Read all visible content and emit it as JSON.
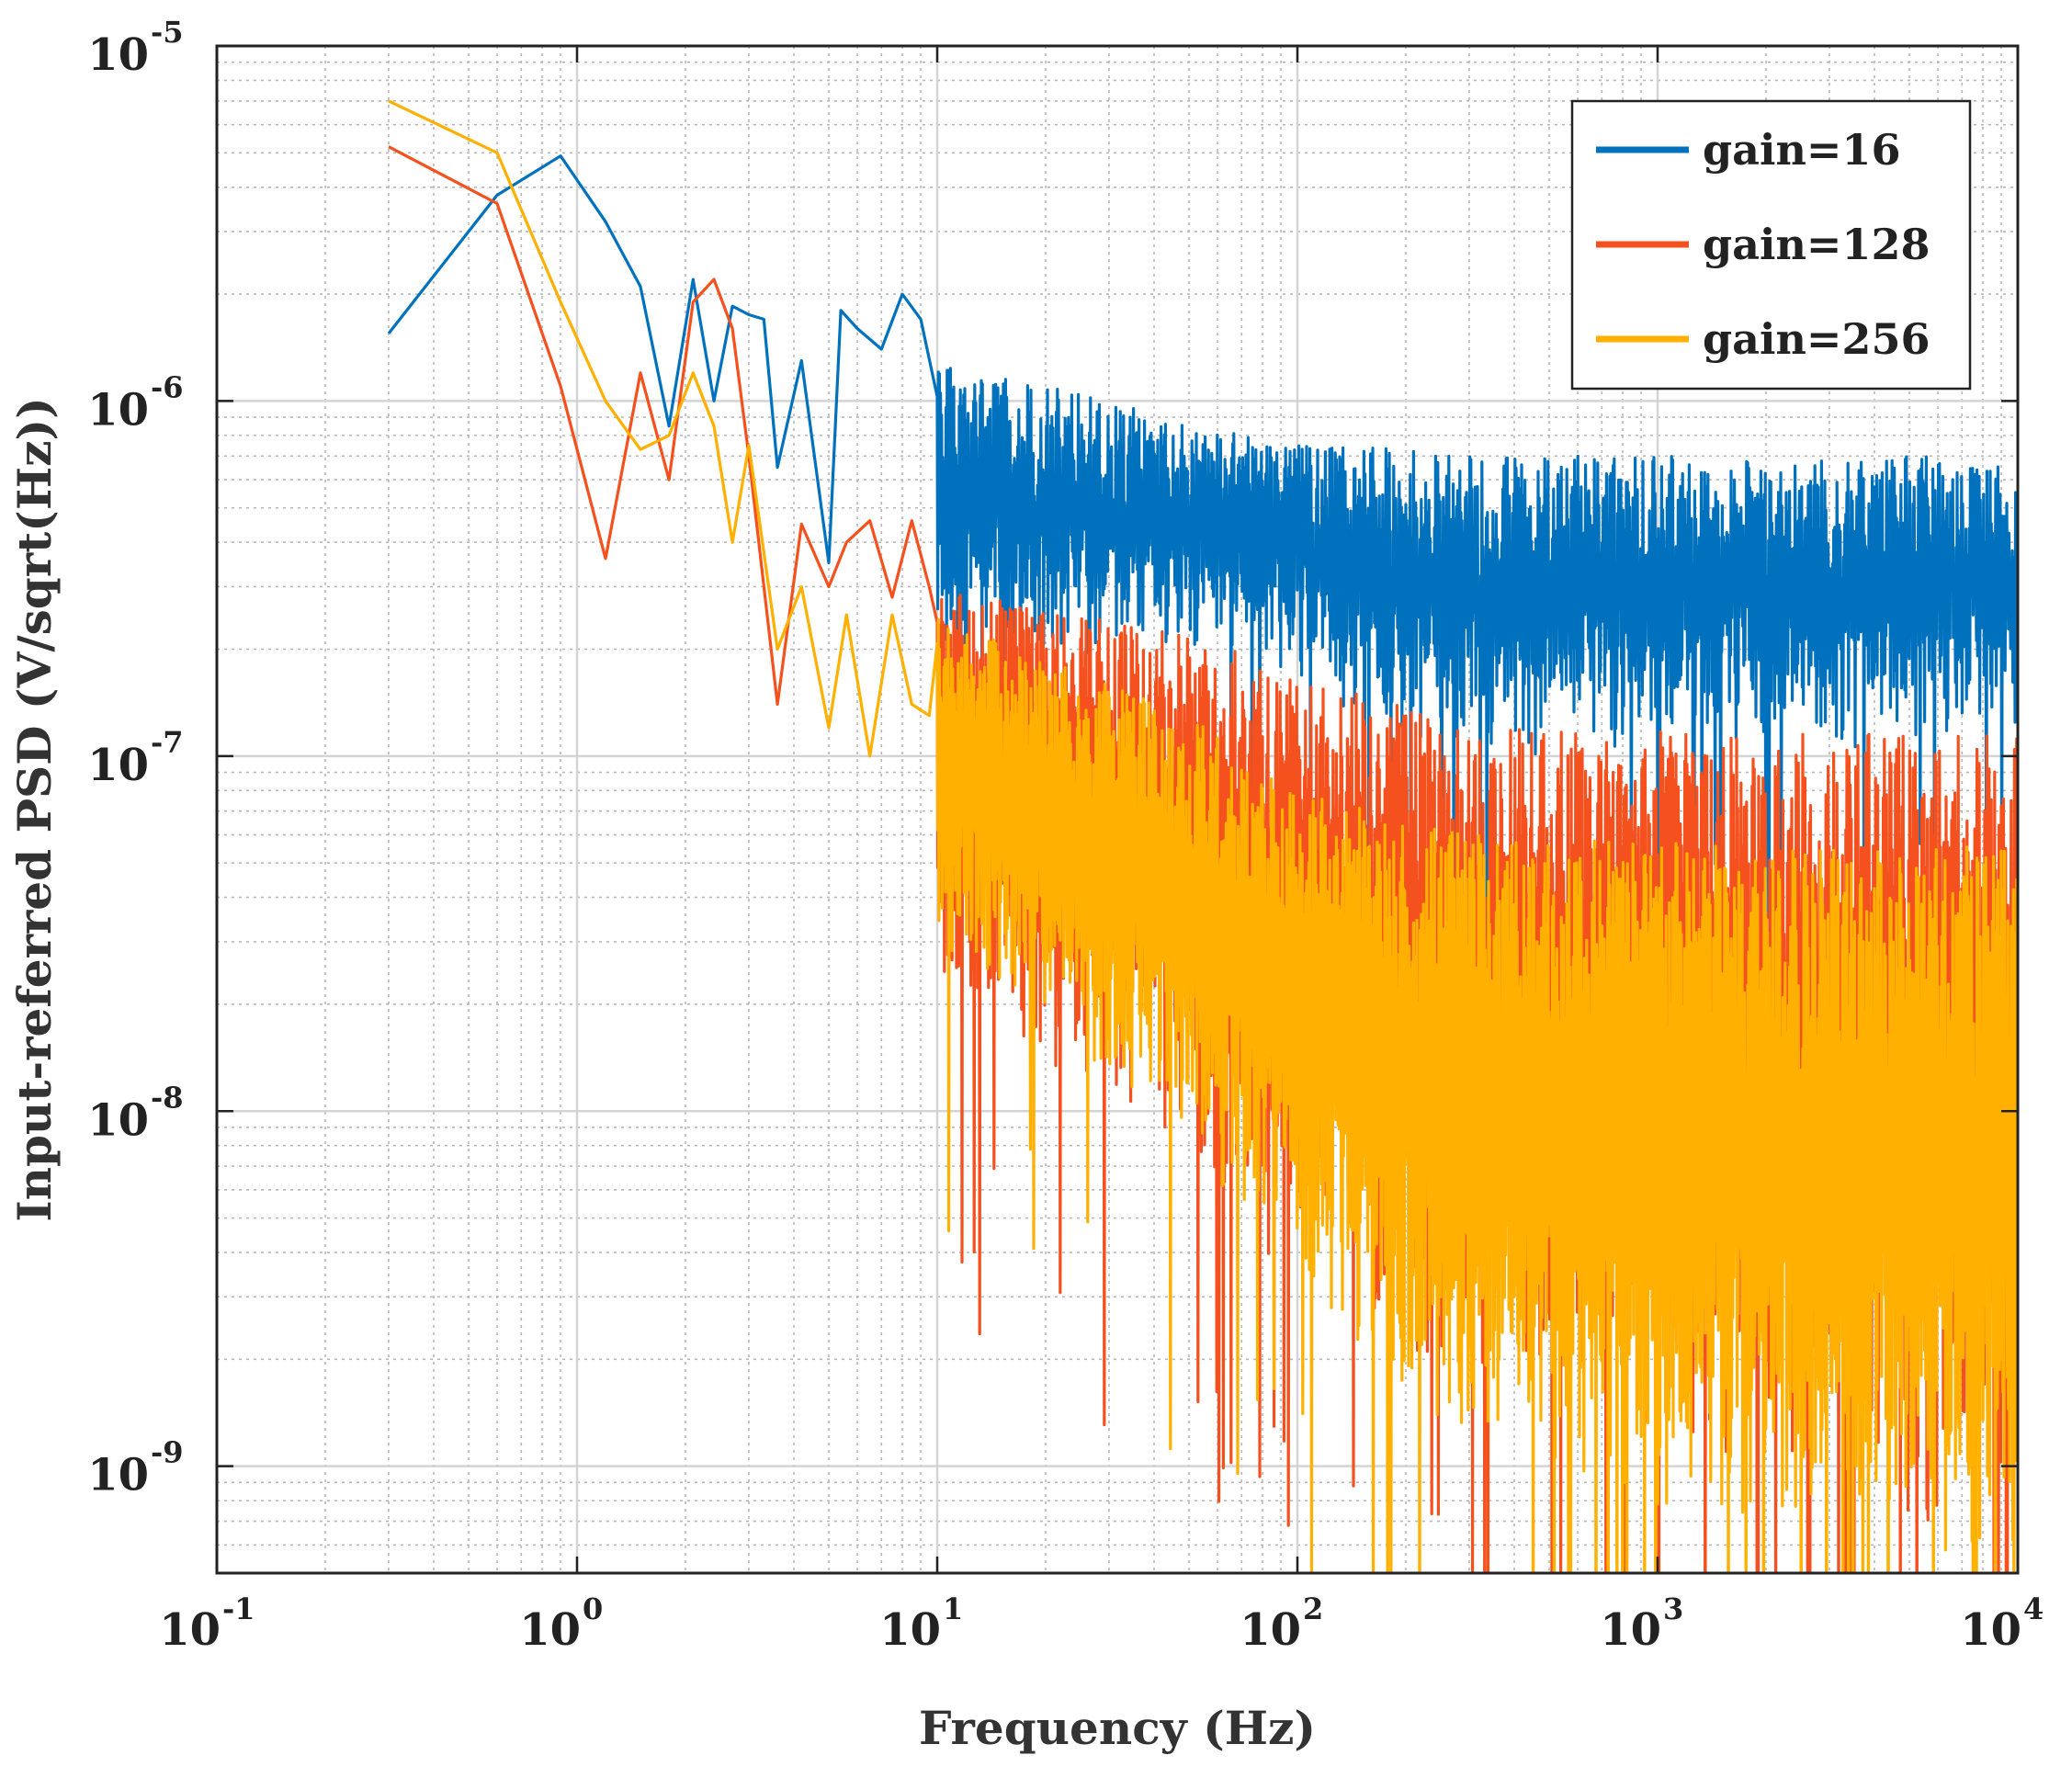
{
  "chart_data": {
    "type": "line",
    "xscale": "log",
    "yscale": "log",
    "xlabel": "Frequency (Hz)",
    "ylabel": "Input-referred PSD (V/sqrt(Hz))",
    "xlim": [
      0.1,
      10000
    ],
    "ylim": [
      5e-10,
      1e-05
    ],
    "grid": true,
    "legend_position": "top-right",
    "x_ticks": [
      {
        "value": 0.1,
        "base": "10",
        "exp": "-1"
      },
      {
        "value": 1,
        "base": "10",
        "exp": "0"
      },
      {
        "value": 10,
        "base": "10",
        "exp": "1"
      },
      {
        "value": 100,
        "base": "10",
        "exp": "2"
      },
      {
        "value": 1000,
        "base": "10",
        "exp": "3"
      },
      {
        "value": 10000,
        "base": "10",
        "exp": "4"
      }
    ],
    "y_ticks": [
      {
        "value": 1e-09,
        "base": "10",
        "exp": "-9"
      },
      {
        "value": 1e-08,
        "base": "10",
        "exp": "-8"
      },
      {
        "value": 1e-07,
        "base": "10",
        "exp": "-7"
      },
      {
        "value": 1e-06,
        "base": "10",
        "exp": "-6"
      },
      {
        "value": 1e-05,
        "base": "10",
        "exp": "-5"
      }
    ],
    "series": [
      {
        "name": "gain=16",
        "label": "gain=16",
        "color": "#0072BD",
        "low_freq_points": [
          [
            0.3,
            1.55e-06
          ],
          [
            0.6,
            3.8e-06
          ],
          [
            0.9,
            4.9e-06
          ],
          [
            1.2,
            3.2e-06
          ],
          [
            1.5,
            2.1e-06
          ],
          [
            1.8,
            8.5e-07
          ],
          [
            2.1,
            2.2e-06
          ],
          [
            2.4,
            1e-06
          ],
          [
            2.7,
            1.85e-06
          ],
          [
            3.0,
            1.75e-06
          ],
          [
            3.3,
            1.7e-06
          ],
          [
            3.6,
            6.5e-07
          ],
          [
            4.2,
            1.3e-06
          ],
          [
            5.0,
            3.5e-07
          ],
          [
            5.4,
            1.8e-06
          ],
          [
            6.0,
            1.6e-06
          ],
          [
            7.0,
            1.4e-06
          ],
          [
            8.0,
            2e-06
          ],
          [
            9.0,
            1.7e-06
          ]
        ],
        "band_upper": [
          [
            10,
            1.3e-06
          ],
          [
            30,
            1e-06
          ],
          [
            80,
            8e-07
          ],
          [
            300,
            7e-07
          ],
          [
            10000,
            7e-07
          ]
        ],
        "band_lower": [
          [
            10,
            1.5e-07
          ],
          [
            30,
            2e-07
          ],
          [
            80,
            1.8e-07
          ],
          [
            150,
            1.2e-07
          ],
          [
            300,
            1e-07
          ],
          [
            1000,
            1e-07
          ],
          [
            10000,
            1.1e-07
          ]
        ],
        "stats": {
          "seed": 11,
          "mean_log_offset": 0.55,
          "spread": 0.45,
          "deep_dip_prob": 0.03,
          "deep_dip_min": 0.25
        }
      },
      {
        "name": "gain=128",
        "label": "gain=128",
        "color": "#F4511E",
        "low_freq_points": [
          [
            0.3,
            5.2e-06
          ],
          [
            0.6,
            3.6e-06
          ],
          [
            0.9,
            1.1e-06
          ],
          [
            1.2,
            3.6e-07
          ],
          [
            1.5,
            1.2e-06
          ],
          [
            1.8,
            6e-07
          ],
          [
            2.1,
            1.9e-06
          ],
          [
            2.4,
            2.2e-06
          ],
          [
            2.7,
            1.6e-06
          ],
          [
            3.0,
            7e-07
          ],
          [
            3.6,
            1.4e-07
          ],
          [
            4.2,
            4.5e-07
          ],
          [
            5.0,
            3e-07
          ],
          [
            5.6,
            4e-07
          ],
          [
            6.5,
            4.6e-07
          ],
          [
            7.5,
            2.8e-07
          ],
          [
            8.5,
            4.6e-07
          ],
          [
            9.5,
            3e-07
          ]
        ],
        "band_upper": [
          [
            10,
            3e-07
          ],
          [
            50,
            2.2e-07
          ],
          [
            150,
            1.5e-07
          ],
          [
            300,
            1.2e-07
          ],
          [
            10000,
            1.15e-07
          ]
        ],
        "band_lower": [
          [
            10,
            2e-08
          ],
          [
            50,
            8e-09
          ],
          [
            100,
            3e-09
          ],
          [
            300,
            1.5e-09
          ],
          [
            1000,
            1e-09
          ],
          [
            10000,
            6e-10
          ]
        ],
        "stats": {
          "seed": 23,
          "mean_log_offset": 0.6,
          "spread": 0.35,
          "deep_dip_prob": 0.04,
          "deep_dip_min": 0.35
        }
      },
      {
        "name": "gain=256",
        "label": "gain=256",
        "color": "#FFB000",
        "low_freq_points": [
          [
            0.3,
            7e-06
          ],
          [
            0.6,
            5e-06
          ],
          [
            0.9,
            1.9e-06
          ],
          [
            1.2,
            1e-06
          ],
          [
            1.5,
            7.3e-07
          ],
          [
            1.8,
            8e-07
          ],
          [
            2.1,
            1.2e-06
          ],
          [
            2.4,
            8.5e-07
          ],
          [
            2.7,
            4e-07
          ],
          [
            3.0,
            7.5e-07
          ],
          [
            3.6,
            2e-07
          ],
          [
            4.2,
            3e-07
          ],
          [
            5.0,
            1.2e-07
          ],
          [
            5.6,
            2.5e-07
          ],
          [
            6.5,
            1e-07
          ],
          [
            7.5,
            2.5e-07
          ],
          [
            8.5,
            1.4e-07
          ],
          [
            9.5,
            1.3e-07
          ]
        ],
        "band_upper": [
          [
            10,
            2.5e-07
          ],
          [
            50,
            1.3e-07
          ],
          [
            100,
            8e-08
          ],
          [
            300,
            6e-08
          ],
          [
            10000,
            5.5e-08
          ]
        ],
        "band_lower": [
          [
            10,
            3e-08
          ],
          [
            50,
            8e-09
          ],
          [
            100,
            3e-09
          ],
          [
            300,
            1e-09
          ],
          [
            1000,
            7e-10
          ],
          [
            10000,
            5e-10
          ]
        ],
        "stats": {
          "seed": 37,
          "mean_log_offset": 0.45,
          "spread": 0.35,
          "deep_dip_prob": 0.05,
          "deep_dip_min": 0.3
        }
      }
    ]
  }
}
